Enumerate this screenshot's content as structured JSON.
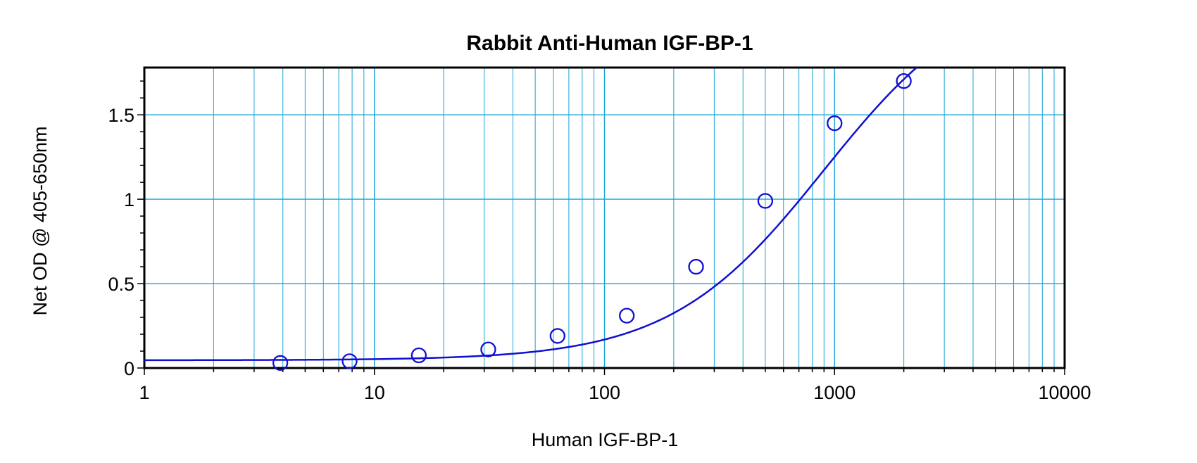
{
  "chart_data": {
    "type": "scatter",
    "title": "Rabbit Anti-Human IGF-BP-1",
    "xlabel": "Human IGF-BP-1",
    "ylabel": "Net OD @ 405-650nm",
    "x_scale": "log",
    "xlim": [
      1,
      10000
    ],
    "ylim": [
      0,
      1.78
    ],
    "x_ticks": [
      1,
      10,
      100,
      1000,
      10000
    ],
    "x_tick_labels": [
      "1",
      "10",
      "100",
      "1000",
      "10000"
    ],
    "y_ticks": [
      0,
      0.5,
      1,
      1.5
    ],
    "y_tick_labels": [
      "0",
      "0.5",
      "1",
      "1.5"
    ],
    "grid": true,
    "colors": {
      "grid": "#1aa3d9",
      "series": "#1010d0",
      "axis": "#000000"
    },
    "series": [
      {
        "x": [
          3.9,
          7.8,
          15.6,
          31.25,
          62.5,
          125,
          250,
          500,
          1000,
          2000
        ],
        "y": [
          0.03,
          0.04,
          0.075,
          0.11,
          0.19,
          0.31,
          0.6,
          0.99,
          1.45,
          1.7
        ]
      }
    ],
    "fit_curve": {
      "model": "4PL",
      "bottom": 0.046,
      "top": 2.3,
      "ec50": 900,
      "hill": 1.3
    }
  }
}
